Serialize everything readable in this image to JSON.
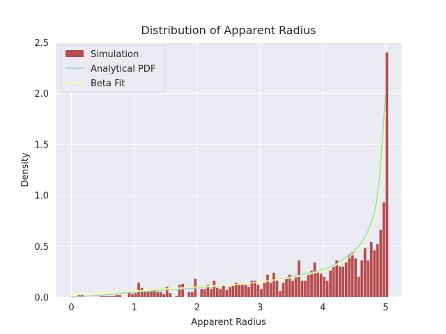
{
  "chart_data": {
    "type": "bar",
    "title": "Distribution of Apparent Radius",
    "xlabel": "Apparent Radius",
    "ylabel": "Density",
    "xlim": [
      -0.25,
      5.25
    ],
    "ylim": [
      0,
      2.5
    ],
    "xticks": [
      0,
      1,
      2,
      3,
      4,
      5
    ],
    "yticks": [
      0.0,
      0.5,
      1.0,
      1.5,
      2.0,
      2.5
    ],
    "xtick_labels": [
      "0",
      "1",
      "2",
      "3",
      "4",
      "5"
    ],
    "ytick_labels": [
      "0.0",
      "0.5",
      "1.0",
      "1.5",
      "2.0",
      "2.5"
    ],
    "grid": true,
    "legend_position": "top-left",
    "colors": {
      "background": "#eaeaf2",
      "grid": "#ffffff",
      "simulation": "#b84b4b",
      "analytical": "#8fd8c4",
      "beta": "#ffff99"
    },
    "series": [
      {
        "name": "Simulation",
        "kind": "histogram",
        "bin_width": 0.05,
        "bin_start": 0,
        "values": [
          0,
          0,
          0.03,
          0.03,
          0,
          0,
          0,
          0,
          0,
          0.01,
          0.01,
          0.01,
          0.01,
          0.01,
          0.02,
          0.02,
          0,
          0,
          0.05,
          0.03,
          0.04,
          0.14,
          0.09,
          0.05,
          0.05,
          0.06,
          0.08,
          0.05,
          0.05,
          0.03,
          0.1,
          0.04,
          0,
          0.01,
          0.12,
          0.13,
          0,
          0.05,
          0.05,
          0.18,
          0,
          0.08,
          0.08,
          0.12,
          0.08,
          0.16,
          0.09,
          0.08,
          0.11,
          0.07,
          0.1,
          0.11,
          0.14,
          0.12,
          0.12,
          0.12,
          0.1,
          0.16,
          0.16,
          0.12,
          0.08,
          0.14,
          0.22,
          0.14,
          0.24,
          0.16,
          0.06,
          0.14,
          0.18,
          0.22,
          0.16,
          0.2,
          0.36,
          0.16,
          0.16,
          0.22,
          0.26,
          0.34,
          0.24,
          0.23,
          0.2,
          0.16,
          0.26,
          0.3,
          0.36,
          0.3,
          0.3,
          0.34,
          0.42,
          0.44,
          0.38,
          0.2,
          0.36,
          0.48,
          0.36,
          0.54,
          0.46,
          0.52,
          0.66,
          0.93,
          2.4
        ]
      },
      {
        "name": "Analytical PDF",
        "kind": "line",
        "x": [
          0,
          0.25,
          0.5,
          0.75,
          1,
          1.25,
          1.5,
          1.75,
          2,
          2.25,
          2.5,
          2.75,
          3,
          3.25,
          3.5,
          3.75,
          4,
          4.1,
          4.2,
          4.3,
          4.4,
          4.5,
          4.6,
          4.7,
          4.8,
          4.85,
          4.9,
          4.93,
          4.96,
          4.98,
          5
        ],
        "y": [
          0,
          0.01,
          0.02,
          0.035,
          0.05,
          0.06,
          0.07,
          0.08,
          0.09,
          0.105,
          0.12,
          0.13,
          0.15,
          0.17,
          0.2,
          0.23,
          0.27,
          0.29,
          0.32,
          0.36,
          0.4,
          0.45,
          0.52,
          0.62,
          0.78,
          0.92,
          1.15,
          1.38,
          1.65,
          1.85,
          2.02
        ]
      },
      {
        "name": "Beta Fit",
        "kind": "line",
        "x": [
          0,
          0.25,
          0.5,
          0.75,
          1,
          1.25,
          1.5,
          1.75,
          2,
          2.25,
          2.5,
          2.75,
          3,
          3.25,
          3.5,
          3.75,
          4,
          4.1,
          4.2,
          4.3,
          4.4,
          4.5,
          4.6,
          4.7,
          4.8,
          4.85,
          4.9,
          4.93,
          4.96,
          4.98,
          5
        ],
        "y": [
          0.02,
          0.03,
          0.04,
          0.05,
          0.06,
          0.07,
          0.08,
          0.09,
          0.1,
          0.11,
          0.12,
          0.13,
          0.15,
          0.17,
          0.19,
          0.22,
          0.26,
          0.28,
          0.31,
          0.34,
          0.38,
          0.43,
          0.49,
          0.58,
          0.72,
          0.84,
          1.02,
          1.2,
          1.45,
          1.65,
          1.82
        ]
      }
    ]
  }
}
